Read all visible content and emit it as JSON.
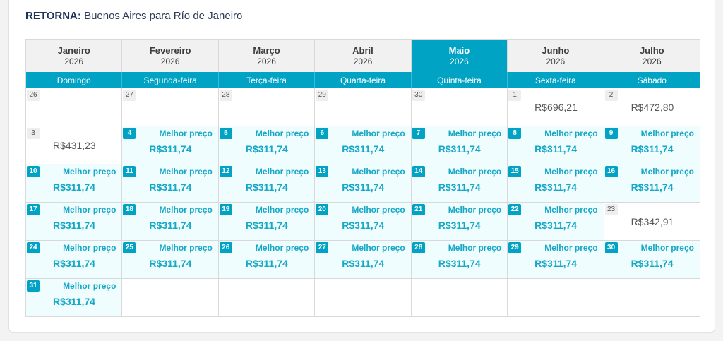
{
  "header": {
    "label": "RETORNA:",
    "route": "Buenos Aires para Río de Janeiro"
  },
  "accent_color": "#00a3c4",
  "months": [
    {
      "name": "Janeiro",
      "year": "2026",
      "active": false
    },
    {
      "name": "Fevereiro",
      "year": "2026",
      "active": false
    },
    {
      "name": "Março",
      "year": "2026",
      "active": false
    },
    {
      "name": "Abril",
      "year": "2026",
      "active": false
    },
    {
      "name": "Maio",
      "year": "2026",
      "active": true
    },
    {
      "name": "Junho",
      "year": "2026",
      "active": false
    },
    {
      "name": "Julho",
      "year": "2026",
      "active": false
    }
  ],
  "weekdays": [
    "Domingo",
    "Segunda-feira",
    "Terça-feira",
    "Quarta-feira",
    "Quinta-feira",
    "Sexta-feira",
    "Sábado"
  ],
  "days": [
    {
      "day": "26",
      "price": "",
      "best": false
    },
    {
      "day": "27",
      "price": "",
      "best": false
    },
    {
      "day": "28",
      "price": "",
      "best": false
    },
    {
      "day": "29",
      "price": "",
      "best": false
    },
    {
      "day": "30",
      "price": "",
      "best": false
    },
    {
      "day": "1",
      "price": "R$696,21",
      "best": false
    },
    {
      "day": "2",
      "price": "R$472,80",
      "best": false
    },
    {
      "day": "3",
      "price": "R$431,23",
      "best": false
    },
    {
      "day": "4",
      "price": "R$311,74",
      "best": true
    },
    {
      "day": "5",
      "price": "R$311,74",
      "best": true
    },
    {
      "day": "6",
      "price": "R$311,74",
      "best": true
    },
    {
      "day": "7",
      "price": "R$311,74",
      "best": true
    },
    {
      "day": "8",
      "price": "R$311,74",
      "best": true
    },
    {
      "day": "9",
      "price": "R$311,74",
      "best": true
    },
    {
      "day": "10",
      "price": "R$311,74",
      "best": true
    },
    {
      "day": "11",
      "price": "R$311,74",
      "best": true
    },
    {
      "day": "12",
      "price": "R$311,74",
      "best": true
    },
    {
      "day": "13",
      "price": "R$311,74",
      "best": true
    },
    {
      "day": "14",
      "price": "R$311,74",
      "best": true
    },
    {
      "day": "15",
      "price": "R$311,74",
      "best": true
    },
    {
      "day": "16",
      "price": "R$311,74",
      "best": true
    },
    {
      "day": "17",
      "price": "R$311,74",
      "best": true
    },
    {
      "day": "18",
      "price": "R$311,74",
      "best": true
    },
    {
      "day": "19",
      "price": "R$311,74",
      "best": true
    },
    {
      "day": "20",
      "price": "R$311,74",
      "best": true
    },
    {
      "day": "21",
      "price": "R$311,74",
      "best": true
    },
    {
      "day": "22",
      "price": "R$311,74",
      "best": true
    },
    {
      "day": "23",
      "price": "R$342,91",
      "best": false
    },
    {
      "day": "24",
      "price": "R$311,74",
      "best": true
    },
    {
      "day": "25",
      "price": "R$311,74",
      "best": true
    },
    {
      "day": "26",
      "price": "R$311,74",
      "best": true
    },
    {
      "day": "27",
      "price": "R$311,74",
      "best": true
    },
    {
      "day": "28",
      "price": "R$311,74",
      "best": true
    },
    {
      "day": "29",
      "price": "R$311,74",
      "best": true
    },
    {
      "day": "30",
      "price": "R$311,74",
      "best": true
    },
    {
      "day": "31",
      "price": "R$311,74",
      "best": true
    },
    {
      "day": "",
      "price": "",
      "best": false
    },
    {
      "day": "",
      "price": "",
      "best": false
    },
    {
      "day": "",
      "price": "",
      "best": false
    },
    {
      "day": "",
      "price": "",
      "best": false
    },
    {
      "day": "",
      "price": "",
      "best": false
    },
    {
      "day": "",
      "price": "",
      "best": false
    }
  ],
  "best_price_label": "Melhor preço"
}
